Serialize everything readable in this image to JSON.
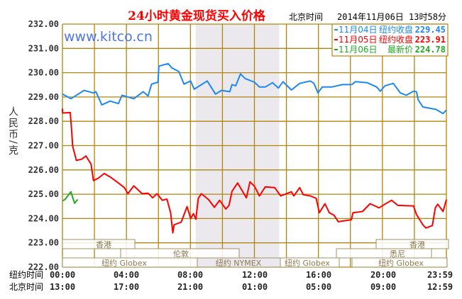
{
  "chart_data": {
    "type": "line",
    "title": "24小时黄金现货买入价格",
    "timezone_label": "北京时间",
    "timestamp": "2014年11月06日 13时58分",
    "watermark": "www.kitco.cn",
    "ylabel": "人民币/克",
    "ylim": [
      222,
      232
    ],
    "yticks": [
      "232.00",
      "231.00",
      "230.00",
      "229.00",
      "228.00",
      "227.00",
      "226.00",
      "225.00",
      "224.00",
      "223.00",
      "222.00"
    ],
    "xlim_hours": [
      0,
      24
    ],
    "grid": true,
    "legend_position": "top-right",
    "x_axis_rows": [
      {
        "label": "纽约时间",
        "ticks": [
          "00:00",
          "04:00",
          "08:00",
          "12:00",
          "16:00",
          "20:00",
          "23:59"
        ]
      },
      {
        "label": "北京时间",
        "ticks": [
          "13:00",
          "17:00",
          "21:00",
          "01:00",
          "05:00",
          "09:00",
          "12:59"
        ]
      }
    ],
    "sessions": {
      "hong_kong": "香港",
      "london": "伦敦",
      "sydney": "悉尼",
      "ny_globex": "纽约 Globex",
      "ny_nymex": "纽约 NYMEX"
    },
    "series": [
      {
        "name": "11月04日",
        "label": "纽约收盘",
        "value": "229.45",
        "color": "#1e88f0",
        "points": [
          [
            0,
            229.12
          ],
          [
            0.53,
            228.93
          ],
          [
            1.35,
            229.27
          ],
          [
            1.94,
            229.17
          ],
          [
            2.09,
            229.22
          ],
          [
            2.46,
            228.68
          ],
          [
            2.98,
            228.83
          ],
          [
            3.5,
            228.73
          ],
          [
            3.72,
            229.07
          ],
          [
            4.46,
            228.93
          ],
          [
            5.05,
            229.22
          ],
          [
            5.35,
            229.04
          ],
          [
            5.57,
            229.53
          ],
          [
            5.97,
            229.61
          ],
          [
            6.03,
            230.27
          ],
          [
            6.61,
            230.37
          ],
          [
            6.83,
            230.2
          ],
          [
            7.27,
            230.05
          ],
          [
            7.6,
            229.53
          ],
          [
            8.01,
            229.66
          ],
          [
            8.24,
            229.32
          ],
          [
            9.05,
            229.66
          ],
          [
            9.57,
            229.12
          ],
          [
            9.94,
            229.27
          ],
          [
            10.46,
            229.22
          ],
          [
            10.6,
            229.51
          ],
          [
            10.83,
            229.46
          ],
          [
            11.13,
            229.95
          ],
          [
            11.42,
            229.76
          ],
          [
            12.0,
            229.61
          ],
          [
            12.31,
            229.41
          ],
          [
            12.68,
            229.41
          ],
          [
            13.13,
            229.59
          ],
          [
            13.5,
            229.37
          ],
          [
            13.79,
            229.63
          ],
          [
            14.31,
            229.29
          ],
          [
            14.83,
            229.56
          ],
          [
            15.49,
            229.66
          ],
          [
            15.72,
            229.56
          ],
          [
            15.97,
            229.17
          ],
          [
            16.24,
            229.41
          ],
          [
            16.83,
            229.41
          ],
          [
            17.5,
            229.51
          ],
          [
            18.09,
            229.51
          ],
          [
            18.31,
            229.63
          ],
          [
            19.05,
            229.59
          ],
          [
            19.64,
            229.41
          ],
          [
            19.87,
            229.24
          ],
          [
            20.16,
            229.46
          ],
          [
            20.68,
            229.56
          ],
          [
            21.12,
            229.17
          ],
          [
            21.49,
            229.07
          ],
          [
            21.94,
            229.24
          ],
          [
            22.13,
            229.22
          ],
          [
            22.24,
            228.88
          ],
          [
            22.53,
            228.59
          ],
          [
            23.35,
            228.49
          ],
          [
            23.79,
            228.32
          ],
          [
            24,
            228.46
          ]
        ]
      },
      {
        "name": "11月05日",
        "label": "纽约收盘",
        "value": "223.91",
        "color": "#ff0000",
        "points": [
          [
            0,
            228.52
          ],
          [
            0.01,
            228.34
          ],
          [
            0.49,
            228.36
          ],
          [
            0.58,
            227.56
          ],
          [
            0.64,
            226.98
          ],
          [
            0.87,
            226.39
          ],
          [
            1.2,
            226.44
          ],
          [
            1.47,
            226.57
          ],
          [
            1.79,
            226.24
          ],
          [
            1.94,
            225.56
          ],
          [
            2.24,
            225.66
          ],
          [
            2.61,
            225.85
          ],
          [
            2.98,
            225.71
          ],
          [
            3.5,
            225.46
          ],
          [
            3.87,
            225.27
          ],
          [
            4.09,
            225.02
          ],
          [
            4.46,
            225.34
          ],
          [
            4.98,
            225.02
          ],
          [
            5.35,
            225.04
          ],
          [
            5.64,
            224.85
          ],
          [
            5.91,
            225.02
          ],
          [
            6.24,
            224.75
          ],
          [
            6.53,
            224.8
          ],
          [
            6.76,
            224.24
          ],
          [
            6.9,
            223.41
          ],
          [
            6.98,
            223.74
          ],
          [
            7.42,
            223.85
          ],
          [
            7.79,
            224.49
          ],
          [
            8.01,
            224.0
          ],
          [
            8.19,
            224.2
          ],
          [
            8.34,
            223.97
          ],
          [
            8.49,
            224.83
          ],
          [
            8.68,
            225.02
          ],
          [
            9.13,
            224.78
          ],
          [
            9.5,
            224.46
          ],
          [
            9.82,
            224.75
          ],
          [
            10.21,
            224.39
          ],
          [
            10.41,
            224.54
          ],
          [
            10.6,
            225.12
          ],
          [
            10.95,
            225.46
          ],
          [
            11.5,
            224.85
          ],
          [
            11.72,
            225.51
          ],
          [
            12.01,
            225.32
          ],
          [
            12.31,
            224.93
          ],
          [
            12.68,
            225.3
          ],
          [
            13.27,
            225.27
          ],
          [
            13.64,
            224.93
          ],
          [
            14.31,
            225.1
          ],
          [
            14.46,
            224.93
          ],
          [
            14.83,
            225.27
          ],
          [
            15.05,
            224.98
          ],
          [
            15.49,
            224.93
          ],
          [
            15.86,
            224.83
          ],
          [
            16.06,
            224.24
          ],
          [
            16.41,
            224.61
          ],
          [
            16.68,
            224.24
          ],
          [
            16.98,
            224.13
          ],
          [
            17.24,
            223.87
          ],
          [
            18.06,
            223.95
          ],
          [
            18.16,
            224.24
          ],
          [
            18.75,
            224.29
          ],
          [
            19.23,
            224.61
          ],
          [
            19.79,
            224.44
          ],
          [
            20.16,
            224.59
          ],
          [
            20.57,
            224.75
          ],
          [
            20.97,
            224.54
          ],
          [
            21.94,
            224.52
          ],
          [
            22.13,
            224.17
          ],
          [
            22.53,
            223.74
          ],
          [
            22.72,
            223.61
          ],
          [
            23.12,
            223.71
          ],
          [
            23.31,
            224.44
          ],
          [
            23.46,
            224.59
          ],
          [
            23.79,
            224.29
          ],
          [
            24,
            224.78
          ]
        ]
      },
      {
        "name": "11月06日",
        "label": "最新价",
        "value": "224.78",
        "color": "#22aa22",
        "points": [
          [
            0,
            224.73
          ],
          [
            0.16,
            224.78
          ],
          [
            0.53,
            225.1
          ],
          [
            0.76,
            224.63
          ],
          [
            0.95,
            224.78
          ]
        ]
      }
    ]
  },
  "colors": {
    "grid": "#b0860e",
    "shade": "#ebe8ee",
    "watermark": "#4f74e6",
    "title": "#ff0000"
  }
}
